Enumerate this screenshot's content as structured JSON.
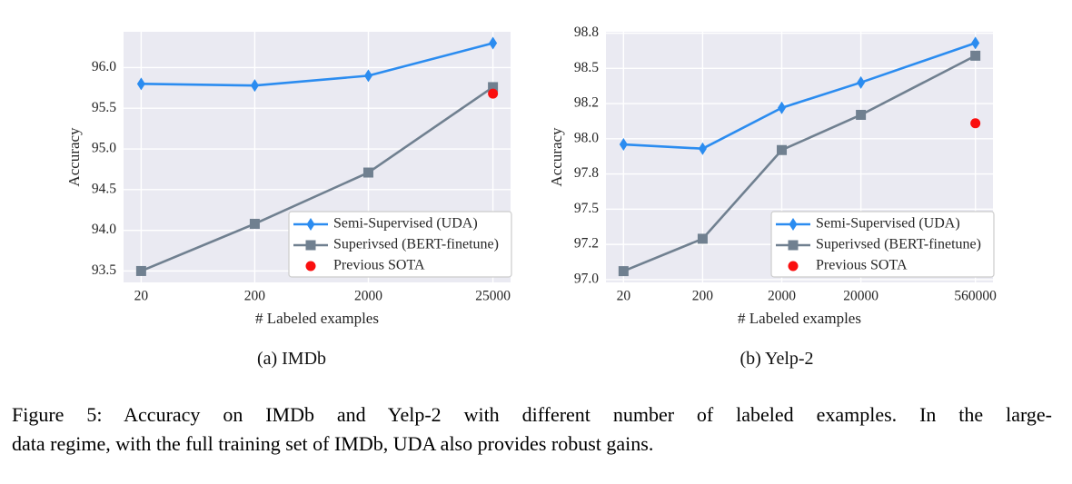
{
  "figure": {
    "subcaptions": {
      "a": "(a) IMDb",
      "b": "(b) Yelp-2"
    },
    "caption": {
      "line1": "Figure 5: Accuracy on IMDb and Yelp-2 with different number of labeled examples. In the large-",
      "line2": "data regime, with the full training set of IMDb, UDA also provides robust gains."
    }
  },
  "style": {
    "page_background": "#ffffff",
    "plot_background": "#eaeaf2",
    "grid_color": "#ffffff",
    "tick_text_color": "#262626",
    "uda_color": "#2b8cf0",
    "bert_color": "#708090",
    "sota_color": "#fa0f0f",
    "legend_background": "#ffffff",
    "legend_border": "#cccccc"
  },
  "chart_data": [
    {
      "type": "line",
      "title": "(a) IMDb",
      "xlabel": "# Labeled examples",
      "ylabel": "Accuracy",
      "x_scale": "log10",
      "grid": true,
      "legend_position": "lower right",
      "categories": [
        20,
        200,
        2000,
        25000
      ],
      "x_tick_labels": [
        "20",
        "200",
        "2000",
        "25000"
      ],
      "series": [
        {
          "name": "Semi-Supervised (UDA)",
          "marker": "thin-diamond",
          "color_key": "uda_color",
          "values": [
            95.8,
            95.78,
            95.9,
            96.3
          ]
        },
        {
          "name": "Superivsed (BERT-finetune)",
          "marker": "square",
          "color_key": "bert_color",
          "values": [
            93.5,
            94.08,
            94.71,
            95.76
          ]
        }
      ],
      "points": [
        {
          "name": "Previous SOTA",
          "marker": "circle",
          "color_key": "sota_color",
          "x": 25000,
          "y": 95.68
        }
      ],
      "yticks": [
        93.5,
        94.0,
        94.5,
        95.0,
        95.5,
        96.0
      ],
      "y_tick_labels": [
        "93.5",
        "94.0",
        "94.5",
        "95.0",
        "95.5",
        "96.0"
      ],
      "ylim": [
        93.36,
        96.44
      ],
      "xlim_log_pad": 0.155
    },
    {
      "type": "line",
      "title": "(b) Yelp-2",
      "xlabel": "# Labeled examples",
      "ylabel": "Accuracy",
      "x_scale": "log10",
      "grid": true,
      "legend_position": "lower right",
      "categories": [
        20,
        200,
        2000,
        20000,
        560000
      ],
      "x_tick_labels": [
        "20",
        "200",
        "2000",
        "20000",
        "560000"
      ],
      "series": [
        {
          "name": "Semi-Supervised (UDA)",
          "marker": "thin-diamond",
          "color_key": "uda_color",
          "values": [
            97.96,
            97.93,
            98.22,
            98.4,
            98.68
          ]
        },
        {
          "name": "Superivsed (BERT-finetune)",
          "marker": "square",
          "color_key": "bert_color",
          "values": [
            97.06,
            97.29,
            97.92,
            98.17,
            98.59
          ]
        }
      ],
      "points": [
        {
          "name": "Previous SOTA",
          "marker": "circle",
          "color_key": "sota_color",
          "x": 560000,
          "y": 98.11
        }
      ],
      "yticks": [
        97.0,
        97.25,
        97.5,
        97.75,
        98.0,
        98.25,
        98.5,
        98.75
      ],
      "y_tick_labels": [
        "97.0",
        "97.2",
        "97.5",
        "97.8",
        "98.0",
        "98.2",
        "98.5",
        "98.8"
      ],
      "ylim": [
        96.98,
        98.76
      ],
      "xlim_log_pad": 0.222
    }
  ]
}
